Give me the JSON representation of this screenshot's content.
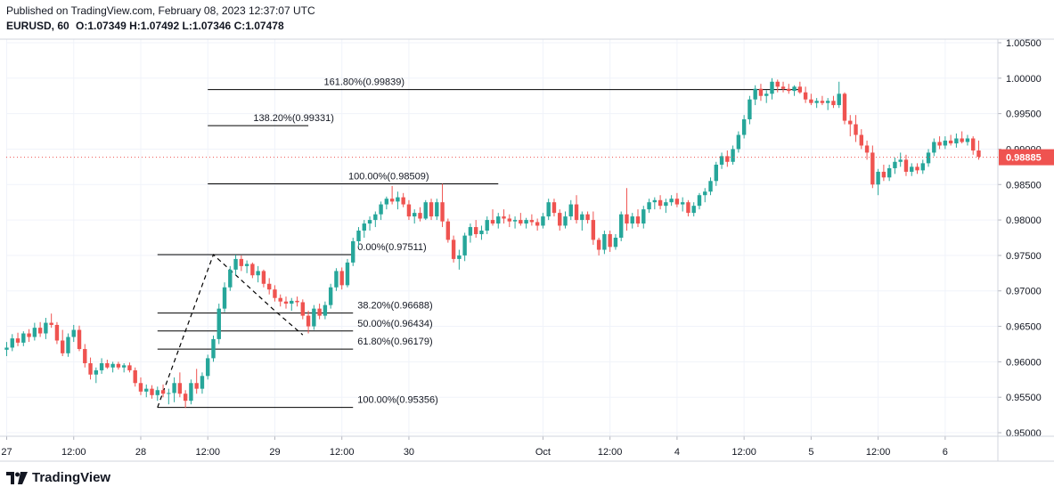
{
  "header": {
    "published": "Published on TradingView.com, February 08, 2023 12:37:07 UTC",
    "symbol": "EURUSD, 60",
    "o_label": "O:",
    "o_value": "1.07349",
    "h_label": "H:",
    "h_value": "1.07492",
    "l_label": "L:",
    "l_value": "1.07346",
    "c_label": "C:",
    "c_value": "1.07478"
  },
  "brand": {
    "name": "TradingView",
    "logo_icon": "tradingview-logo-icon"
  },
  "chart_data": {
    "type": "candlestick",
    "colors": {
      "up": "#26a69a",
      "down": "#ef5350",
      "grid": "#f0f3fa",
      "line": "#000000",
      "price_badge": "#ef5350"
    },
    "ylim": [
      0.9495,
      1.0055
    ],
    "y_ticks": [
      "1.00500",
      "1.00000",
      "0.99500",
      "0.99000",
      "0.98500",
      "0.98000",
      "0.97500",
      "0.97000",
      "0.96500",
      "0.96000",
      "0.95500",
      "0.95000"
    ],
    "x_ticks": [
      {
        "label": "27",
        "i": 0
      },
      {
        "label": "12:00",
        "i": 12
      },
      {
        "label": "28",
        "i": 24
      },
      {
        "label": "12:00",
        "i": 36
      },
      {
        "label": "29",
        "i": 48
      },
      {
        "label": "12:00",
        "i": 60
      },
      {
        "label": "30",
        "i": 72
      },
      {
        "label": "Oct",
        "i": 96
      },
      {
        "label": "12:00",
        "i": 108
      },
      {
        "label": "4",
        "i": 120
      },
      {
        "label": "12:00",
        "i": 132
      },
      {
        "label": "5",
        "i": 144
      },
      {
        "label": "12:00",
        "i": 156
      },
      {
        "label": "6",
        "i": 168
      }
    ],
    "current_price": "0.98885",
    "candles_ohlc": [
      [
        0.9617,
        0.9628,
        0.9608,
        0.962
      ],
      [
        0.962,
        0.9639,
        0.9615,
        0.9633
      ],
      [
        0.9633,
        0.9641,
        0.9622,
        0.9627
      ],
      [
        0.9627,
        0.9643,
        0.9622,
        0.964
      ],
      [
        0.964,
        0.9646,
        0.9628,
        0.9635
      ],
      [
        0.9635,
        0.9655,
        0.963,
        0.9648
      ],
      [
        0.9648,
        0.9656,
        0.9635,
        0.964
      ],
      [
        0.964,
        0.9662,
        0.9632,
        0.9655
      ],
      [
        0.9655,
        0.9668,
        0.9648,
        0.9652
      ],
      [
        0.9652,
        0.9656,
        0.9625,
        0.963
      ],
      [
        0.963,
        0.9645,
        0.9608,
        0.9612
      ],
      [
        0.9612,
        0.964,
        0.9607,
        0.9635
      ],
      [
        0.9635,
        0.9652,
        0.9628,
        0.9645
      ],
      [
        0.9645,
        0.9651,
        0.9615,
        0.9618
      ],
      [
        0.9618,
        0.9625,
        0.9592,
        0.9598
      ],
      [
        0.9598,
        0.9606,
        0.9575,
        0.9582
      ],
      [
        0.9582,
        0.9592,
        0.957,
        0.9588
      ],
      [
        0.9588,
        0.9605,
        0.9583,
        0.9598
      ],
      [
        0.9598,
        0.9603,
        0.959,
        0.9592
      ],
      [
        0.9592,
        0.96,
        0.9585,
        0.9597
      ],
      [
        0.9597,
        0.96,
        0.9589,
        0.9592
      ],
      [
        0.9592,
        0.9598,
        0.9585,
        0.9595
      ],
      [
        0.9595,
        0.9599,
        0.9585,
        0.9588
      ],
      [
        0.9588,
        0.9592,
        0.9565,
        0.957
      ],
      [
        0.957,
        0.9578,
        0.9553,
        0.9558
      ],
      [
        0.9558,
        0.9568,
        0.955,
        0.9562
      ],
      [
        0.9562,
        0.9567,
        0.9548,
        0.9553
      ],
      [
        0.9553,
        0.9565,
        0.9545,
        0.956
      ],
      [
        0.956,
        0.9568,
        0.955,
        0.9555
      ],
      [
        0.9555,
        0.9562,
        0.954,
        0.9556
      ],
      [
        0.9556,
        0.9578,
        0.9543,
        0.957
      ],
      [
        0.957,
        0.9585,
        0.955,
        0.9555
      ],
      [
        0.9555,
        0.956,
        0.9535,
        0.9545
      ],
      [
        0.9545,
        0.9575,
        0.954,
        0.957
      ],
      [
        0.957,
        0.959,
        0.9555,
        0.9562
      ],
      [
        0.9562,
        0.9585,
        0.9555,
        0.958
      ],
      [
        0.958,
        0.961,
        0.9575,
        0.9605
      ],
      [
        0.9605,
        0.9637,
        0.96,
        0.9632
      ],
      [
        0.9632,
        0.9682,
        0.9625,
        0.9675
      ],
      [
        0.9675,
        0.9712,
        0.967,
        0.9705
      ],
      [
        0.9705,
        0.9735,
        0.97,
        0.973
      ],
      [
        0.973,
        0.9751,
        0.9722,
        0.9745
      ],
      [
        0.9745,
        0.975,
        0.9728,
        0.9735
      ],
      [
        0.9735,
        0.9743,
        0.9725,
        0.9738
      ],
      [
        0.9738,
        0.974,
        0.9718,
        0.9722
      ],
      [
        0.9722,
        0.9735,
        0.9712,
        0.9728
      ],
      [
        0.9728,
        0.973,
        0.9705,
        0.971
      ],
      [
        0.971,
        0.9718,
        0.9695,
        0.9702
      ],
      [
        0.9702,
        0.9708,
        0.9685,
        0.969
      ],
      [
        0.969,
        0.9695,
        0.9678,
        0.9685
      ],
      [
        0.9685,
        0.9692,
        0.9675,
        0.9682
      ],
      [
        0.9682,
        0.969,
        0.9672,
        0.9686
      ],
      [
        0.9686,
        0.9692,
        0.9678,
        0.9684
      ],
      [
        0.9684,
        0.9688,
        0.966,
        0.9665
      ],
      [
        0.9665,
        0.9672,
        0.964,
        0.965
      ],
      [
        0.965,
        0.968,
        0.9645,
        0.9675
      ],
      [
        0.9675,
        0.9682,
        0.966,
        0.9665
      ],
      [
        0.9665,
        0.9685,
        0.966,
        0.968
      ],
      [
        0.968,
        0.971,
        0.9675,
        0.9705
      ],
      [
        0.9705,
        0.9732,
        0.97,
        0.9728
      ],
      [
        0.9728,
        0.9733,
        0.9702,
        0.9708
      ],
      [
        0.9708,
        0.9745,
        0.9705,
        0.974
      ],
      [
        0.974,
        0.9775,
        0.9735,
        0.977
      ],
      [
        0.977,
        0.979,
        0.9762,
        0.9785
      ],
      [
        0.9785,
        0.98,
        0.9775,
        0.9795
      ],
      [
        0.9795,
        0.9805,
        0.9785,
        0.98
      ],
      [
        0.98,
        0.9812,
        0.979,
        0.9808
      ],
      [
        0.9808,
        0.9826,
        0.98,
        0.9822
      ],
      [
        0.9822,
        0.9833,
        0.9815,
        0.983
      ],
      [
        0.983,
        0.9848,
        0.9822,
        0.9826
      ],
      [
        0.9826,
        0.984,
        0.9815,
        0.9832
      ],
      [
        0.9832,
        0.9838,
        0.9818,
        0.9822
      ],
      [
        0.9822,
        0.9828,
        0.98,
        0.9805
      ],
      [
        0.9805,
        0.9815,
        0.9795,
        0.981
      ],
      [
        0.981,
        0.9818,
        0.9798,
        0.9802
      ],
      [
        0.9802,
        0.9828,
        0.98,
        0.9825
      ],
      [
        0.9825,
        0.983,
        0.98,
        0.9805
      ],
      [
        0.9805,
        0.983,
        0.98,
        0.9825
      ],
      [
        0.9825,
        0.9851,
        0.979,
        0.9798
      ],
      [
        0.9798,
        0.9802,
        0.9768,
        0.9772
      ],
      [
        0.9772,
        0.9778,
        0.974,
        0.9745
      ],
      [
        0.9745,
        0.9758,
        0.973,
        0.975
      ],
      [
        0.975,
        0.9782,
        0.9742,
        0.9778
      ],
      [
        0.9778,
        0.9795,
        0.9768,
        0.979
      ],
      [
        0.979,
        0.98,
        0.9775,
        0.978
      ],
      [
        0.978,
        0.9792,
        0.9772,
        0.9785
      ],
      [
        0.9785,
        0.9805,
        0.978,
        0.98
      ],
      [
        0.98,
        0.9815,
        0.9792,
        0.9795
      ],
      [
        0.9795,
        0.981,
        0.9788,
        0.9805
      ],
      [
        0.9805,
        0.9815,
        0.9795,
        0.9802
      ],
      [
        0.9802,
        0.9808,
        0.979,
        0.9798
      ],
      [
        0.9798,
        0.9805,
        0.9788,
        0.98
      ],
      [
        0.98,
        0.981,
        0.9792,
        0.9795
      ],
      [
        0.9795,
        0.9803,
        0.9788,
        0.98
      ],
      [
        0.98,
        0.9808,
        0.9792,
        0.9797
      ],
      [
        0.9797,
        0.9802,
        0.9785,
        0.9792
      ],
      [
        0.9792,
        0.981,
        0.9788,
        0.9805
      ],
      [
        0.9805,
        0.983,
        0.98,
        0.9825
      ],
      [
        0.9825,
        0.983,
        0.9805,
        0.981
      ],
      [
        0.981,
        0.9815,
        0.9785,
        0.9792
      ],
      [
        0.9792,
        0.9812,
        0.9788,
        0.9805
      ],
      [
        0.9805,
        0.9828,
        0.98,
        0.9822
      ],
      [
        0.9822,
        0.9835,
        0.9795,
        0.98
      ],
      [
        0.98,
        0.9812,
        0.9785,
        0.9808
      ],
      [
        0.9808,
        0.9812,
        0.9795,
        0.98
      ],
      [
        0.98,
        0.9812,
        0.9765,
        0.9772
      ],
      [
        0.9772,
        0.9775,
        0.975,
        0.9758
      ],
      [
        0.9758,
        0.9785,
        0.9752,
        0.978
      ],
      [
        0.978,
        0.9785,
        0.9755,
        0.9762
      ],
      [
        0.9762,
        0.978,
        0.9758,
        0.9775
      ],
      [
        0.9775,
        0.9812,
        0.977,
        0.9808
      ],
      [
        0.9808,
        0.9845,
        0.9785,
        0.9795
      ],
      [
        0.9795,
        0.981,
        0.9788,
        0.9805
      ],
      [
        0.9805,
        0.9815,
        0.979,
        0.9795
      ],
      [
        0.9795,
        0.982,
        0.9788,
        0.9815
      ],
      [
        0.9815,
        0.983,
        0.981,
        0.9825
      ],
      [
        0.9825,
        0.9832,
        0.9815,
        0.9828
      ],
      [
        0.9828,
        0.9835,
        0.9815,
        0.982
      ],
      [
        0.982,
        0.983,
        0.981,
        0.9825
      ],
      [
        0.9825,
        0.9835,
        0.982,
        0.983
      ],
      [
        0.983,
        0.9838,
        0.9818,
        0.9822
      ],
      [
        0.9822,
        0.9832,
        0.9812,
        0.9825
      ],
      [
        0.9825,
        0.9828,
        0.9805,
        0.981
      ],
      [
        0.981,
        0.9825,
        0.9805,
        0.982
      ],
      [
        0.982,
        0.9838,
        0.9815,
        0.9835
      ],
      [
        0.9835,
        0.9845,
        0.9825,
        0.984
      ],
      [
        0.984,
        0.986,
        0.9835,
        0.9855
      ],
      [
        0.9855,
        0.9882,
        0.9848,
        0.9878
      ],
      [
        0.9878,
        0.9895,
        0.9872,
        0.989
      ],
      [
        0.989,
        0.9898,
        0.9875,
        0.9882
      ],
      [
        0.9882,
        0.9905,
        0.9878,
        0.99
      ],
      [
        0.99,
        0.9925,
        0.9895,
        0.992
      ],
      [
        0.992,
        0.9948,
        0.9915,
        0.9942
      ],
      [
        0.9942,
        0.9975,
        0.9935,
        0.997
      ],
      [
        0.997,
        0.999,
        0.9962,
        0.9985
      ],
      [
        0.9985,
        0.9992,
        0.9968,
        0.9975
      ],
      [
        0.9975,
        0.9983,
        0.9965,
        0.9978
      ],
      [
        0.9978,
        1.0,
        0.997,
        0.9995
      ],
      [
        0.9995,
        0.9998,
        0.998,
        0.9988
      ],
      [
        0.9988,
        0.9995,
        0.998,
        0.9985
      ],
      [
        0.9985,
        0.9992,
        0.9978,
        0.9982
      ],
      [
        0.9982,
        0.999,
        0.9975,
        0.9988
      ],
      [
        0.9988,
        0.9995,
        0.9978,
        0.998
      ],
      [
        0.998,
        0.9988,
        0.9965,
        0.997
      ],
      [
        0.997,
        0.9978,
        0.9962,
        0.9965
      ],
      [
        0.9965,
        0.9972,
        0.9958,
        0.9968
      ],
      [
        0.9968,
        0.9975,
        0.9962,
        0.9965
      ],
      [
        0.9965,
        0.9972,
        0.9955,
        0.9968
      ],
      [
        0.9968,
        0.9975,
        0.9958,
        0.9962
      ],
      [
        0.9962,
        0.9995,
        0.9958,
        0.9978
      ],
      [
        0.9978,
        0.998,
        0.9935,
        0.994
      ],
      [
        0.994,
        0.9948,
        0.9918,
        0.9935
      ],
      [
        0.9935,
        0.9948,
        0.991,
        0.992
      ],
      [
        0.992,
        0.9928,
        0.99,
        0.9905
      ],
      [
        0.9905,
        0.9912,
        0.9885,
        0.9895
      ],
      [
        0.9895,
        0.9905,
        0.9845,
        0.985
      ],
      [
        0.985,
        0.9872,
        0.9835,
        0.9868
      ],
      [
        0.9868,
        0.9878,
        0.9855,
        0.986
      ],
      [
        0.986,
        0.9878,
        0.9855,
        0.9873
      ],
      [
        0.9873,
        0.9888,
        0.9865,
        0.9882
      ],
      [
        0.9882,
        0.9895,
        0.9875,
        0.9885
      ],
      [
        0.9885,
        0.9892,
        0.9862,
        0.9868
      ],
      [
        0.9868,
        0.988,
        0.9862,
        0.9875
      ],
      [
        0.9875,
        0.988,
        0.9865,
        0.987
      ],
      [
        0.987,
        0.9885,
        0.9865,
        0.988
      ],
      [
        0.988,
        0.99,
        0.9875,
        0.9895
      ],
      [
        0.9895,
        0.9915,
        0.989,
        0.991
      ],
      [
        0.991,
        0.9918,
        0.99,
        0.9905
      ],
      [
        0.9905,
        0.9918,
        0.99,
        0.9912
      ],
      [
        0.9912,
        0.992,
        0.9905,
        0.9908
      ],
      [
        0.9908,
        0.9922,
        0.9902,
        0.9915
      ],
      [
        0.9915,
        0.9925,
        0.9908,
        0.991
      ],
      [
        0.991,
        0.992,
        0.9905,
        0.9915
      ],
      [
        0.9915,
        0.9918,
        0.9892,
        0.9898
      ],
      [
        0.9898,
        0.9912,
        0.9885,
        0.9889
      ]
    ],
    "fib_levels": [
      {
        "label": "161.80%(0.99839)",
        "value": 0.99839,
        "i0": 36,
        "i1": 142
      },
      {
        "label": "138.20%(0.99331)",
        "value": 0.99331,
        "i0": 36,
        "i1": 54
      },
      {
        "label": "100.00%(0.98509)",
        "value": 0.98509,
        "i0": 36,
        "i1": 88
      },
      {
        "label": "0.00%(0.97511)",
        "value": 0.97511,
        "i0": 27,
        "i1": 62
      },
      {
        "label": "38.20%(0.96688)",
        "value": 0.96688,
        "i0": 27,
        "i1": 62
      },
      {
        "label": "50.00%(0.96434)",
        "value": 0.96434,
        "i0": 27,
        "i1": 62
      },
      {
        "label": "61.80%(0.96179)",
        "value": 0.96179,
        "i0": 27,
        "i1": 62
      },
      {
        "label": "100.00%(0.95356)",
        "value": 0.95356,
        "i0": 27,
        "i1": 62
      }
    ],
    "trend_path": [
      {
        "i": 27,
        "v": 0.95356
      },
      {
        "i": 37,
        "v": 0.97511
      },
      {
        "i": 48,
        "v": 0.9672
      },
      {
        "i": 53,
        "v": 0.9638
      }
    ]
  }
}
